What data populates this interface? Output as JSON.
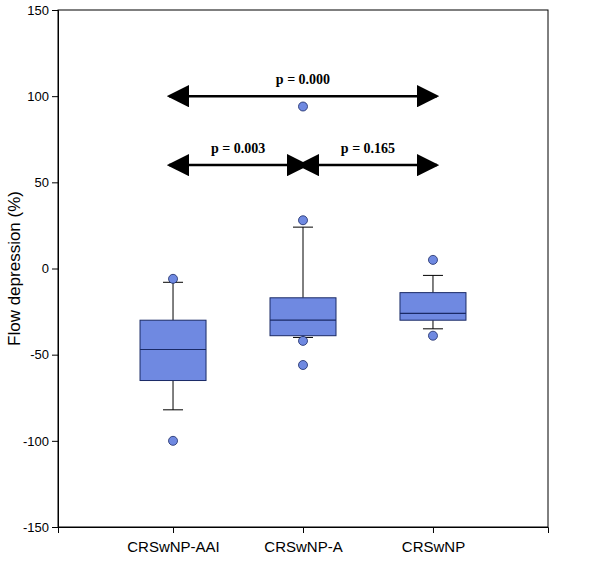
{
  "chart_data": {
    "type": "box",
    "y_label": "Flow depression (%)",
    "categories": [
      "CRSwNP-AAI",
      "CRSwNP-A",
      "CRSwNP"
    ],
    "color": "#6f89e1",
    "boxes": [
      {
        "whisker_low": -82,
        "q1": -65,
        "median": -47,
        "q3": -30,
        "whisker_high": -8,
        "outliers": [
          -6,
          -100
        ]
      },
      {
        "whisker_low": -40,
        "q1": -39,
        "median": -30,
        "q3": -17,
        "whisker_high": 24,
        "outliers": [
          94,
          28,
          -42,
          -56
        ]
      },
      {
        "whisker_low": -35,
        "q1": -30,
        "median": -26,
        "q3": -14,
        "whisker_high": -4,
        "outliers": [
          5,
          -39
        ]
      }
    ],
    "ylim": [
      -150,
      150
    ],
    "yticks": [
      -150,
      -100,
      -50,
      0,
      50,
      100,
      150
    ],
    "annotations": [
      {
        "text": "p = 0.000",
        "from": "CRSwNP-AAI",
        "to": "CRSwNP",
        "y": 100
      },
      {
        "text": "p = 0.003",
        "from": "CRSwNP-AAI",
        "to": "CRSwNP-A",
        "y": 60
      },
      {
        "text": "p = 0.165",
        "from": "CRSwNP-A",
        "to": "CRSwNP",
        "y": 60
      }
    ]
  }
}
